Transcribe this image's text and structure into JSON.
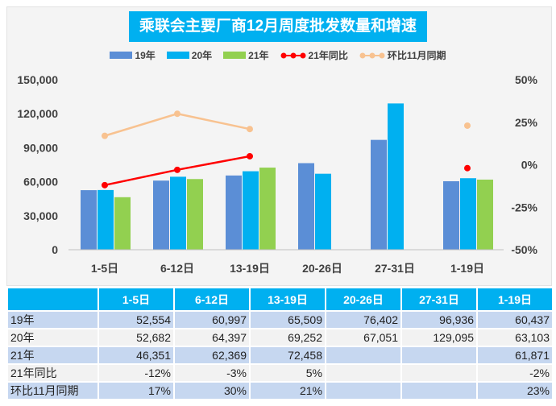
{
  "chart_data": {
    "type": "bar",
    "title": "乘联会主要厂商12月周度批发数量和增速",
    "categories": [
      "1-5日",
      "6-12日",
      "13-19日",
      "20-26日",
      "27-31日",
      "1-19日"
    ],
    "series": [
      {
        "name": "19年",
        "kind": "bar",
        "axis": "left",
        "color": "#5b8ed6",
        "values": [
          52554,
          60997,
          65509,
          76402,
          96936,
          60437
        ]
      },
      {
        "name": "20年",
        "kind": "bar",
        "axis": "left",
        "color": "#00b0f0",
        "values": [
          52682,
          64397,
          69252,
          67051,
          129095,
          63103
        ]
      },
      {
        "name": "21年",
        "kind": "bar",
        "axis": "left",
        "color": "#92d050",
        "values": [
          46351,
          62369,
          72458,
          null,
          null,
          61871
        ]
      },
      {
        "name": "21年同比",
        "kind": "line",
        "axis": "right",
        "color": "#ff0000",
        "values": [
          -12,
          -3,
          5,
          null,
          null,
          -2
        ]
      },
      {
        "name": "环比11月同期",
        "kind": "line",
        "axis": "right",
        "color": "#f8c290",
        "values": [
          17,
          30,
          21,
          null,
          null,
          23
        ]
      }
    ],
    "left_axis": {
      "ylim": [
        0,
        150000
      ],
      "ticks": [
        "0",
        "30,000",
        "60,000",
        "90,000",
        "120,000",
        "150,000"
      ]
    },
    "right_axis": {
      "ylim": [
        -50,
        50
      ],
      "ticks": [
        "-50%",
        "-25%",
        "0%",
        "25%",
        "50%"
      ]
    },
    "legend_position": "top",
    "grid": false
  },
  "table": {
    "headers": [
      "",
      "1-5日",
      "6-12日",
      "13-19日",
      "20-26日",
      "27-31日",
      "1-19日"
    ],
    "rows": [
      [
        "19年",
        "52,554",
        "60,997",
        "65,509",
        "76,402",
        "96,936",
        "60,437"
      ],
      [
        "20年",
        "52,682",
        "64,397",
        "69,252",
        "67,051",
        "129,095",
        "63,103"
      ],
      [
        "21年",
        "46,351",
        "62,369",
        "72,458",
        "",
        "",
        "61,871"
      ],
      [
        "21年同比",
        "-12%",
        "-3%",
        "5%",
        "",
        "",
        "-2%"
      ],
      [
        "环比11月同期",
        "17%",
        "30%",
        "21%",
        "",
        "",
        "23%"
      ]
    ]
  }
}
